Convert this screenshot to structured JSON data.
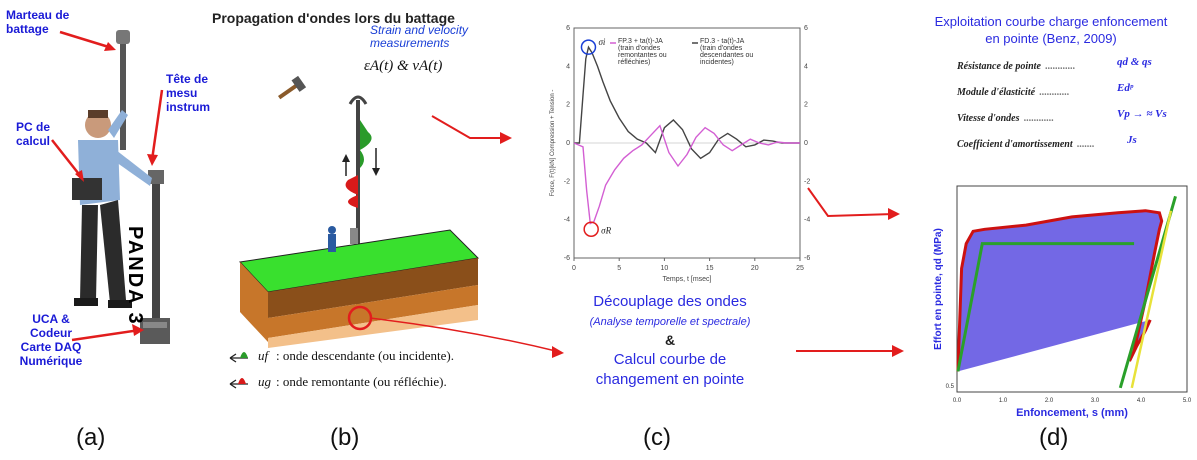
{
  "panel_a": {
    "labels": {
      "marteau": "Marteau de battage",
      "tete": "Tête de mesu instrumenté",
      "pc": "PC de calcul",
      "uca": "UCA & Codeur Carte DAQ Numérique",
      "panda": "PANDA 3"
    },
    "caption": "(a)"
  },
  "panel_b": {
    "title": "Propagation d'ondes lors du battage",
    "strain_label": "Strain and velocity measurements",
    "eps_formula": "εA(t) & vA(t)",
    "legend_down": ": onde descendante (ou incidente).",
    "legend_up": ": onde remontante (ou réfléchie).",
    "legend_down_sym": "uf",
    "legend_up_sym": "ug",
    "caption": "(b)"
  },
  "panel_c": {
    "decouplage_title": "Découplage des ondes",
    "decouplage_sub": "(Analyse temporelle et spectrale)",
    "ampersand": "&",
    "calcul_line1": "Calcul courbe de",
    "calcul_line2": "changement en pointe",
    "caption": "(c)"
  },
  "panel_d": {
    "title_line1": "Exploitation courbe charge enfoncement",
    "title_line2": "en pointe (Benz, 2009)",
    "params": [
      {
        "name": "Résistance de pointe",
        "value": "qd & qs"
      },
      {
        "name": "Module d'élasticité",
        "value": "Edᵖ"
      },
      {
        "name": "Vitesse d'ondes",
        "value": "Vp → ≈ Vs"
      },
      {
        "name": "Coefficient d'amortissement",
        "value": "Js"
      }
    ],
    "caption": "(d)"
  },
  "chart_data": [
    {
      "type": "line",
      "xlabel": "Temps, t [msec]",
      "ylabel": "Force, F(t)[kN] Compression + Tension -",
      "xlim": [
        0,
        25
      ],
      "ylim": [
        -6,
        6
      ],
      "y2lim": [
        -6,
        6
      ],
      "x_ticks": [
        0,
        5,
        10,
        15,
        20,
        25
      ],
      "y_ticks": [
        6,
        4,
        2,
        0,
        -2,
        -4,
        -6
      ],
      "legend": [
        {
          "name": "FP.3 + ta(t)-JA",
          "note": "(train d'ondes remontantes ou réfléchies)",
          "color": "#d35fd3"
        },
        {
          "name": "FD.3 - ta(t)-JA",
          "note": "(train d'ondes descendantes ou incidentes)",
          "color": "#444444"
        }
      ],
      "annotations": [
        {
          "text": "σi",
          "x": 1.6,
          "y": 5.0
        },
        {
          "text": "σR",
          "x": 1.9,
          "y": -4.5
        }
      ],
      "series": [
        {
          "name": "FD.3 - ta(t)-JA",
          "color": "#444444",
          "x": [
            0,
            0.6,
            1.0,
            1.3,
            1.6,
            2.0,
            2.6,
            3.2,
            4.0,
            5.0,
            6.0,
            7.0,
            8.0,
            9.0,
            10.0,
            11.0,
            12.0,
            13.0,
            14.0,
            15.0,
            16.0,
            17.0,
            18.0,
            19.0,
            20.0,
            21.0,
            22.0,
            23.0,
            24.0,
            25.0
          ],
          "y": [
            0,
            0,
            2.5,
            4.4,
            5.0,
            4.7,
            4.0,
            3.2,
            2.2,
            1.3,
            0.6,
            0.2,
            0.0,
            -0.5,
            0.8,
            1.2,
            0.7,
            -0.3,
            -0.8,
            -0.5,
            0.2,
            0.5,
            0.2,
            -0.2,
            -0.1,
            0.15,
            0.1,
            0.0,
            0.0,
            0.0
          ]
        },
        {
          "name": "FP.3 + ta(t)-JA",
          "color": "#d35fd3",
          "x": [
            0,
            1.0,
            1.4,
            1.8,
            2.2,
            2.8,
            3.5,
            4.5,
            5.5,
            6.5,
            7.5,
            8.5,
            9.5,
            10.5,
            11.5,
            12.5,
            13.5,
            14.5,
            15.5,
            16.5,
            17.5,
            18.5,
            19.5,
            20.5,
            21.5,
            22.5,
            23.5,
            25.0
          ],
          "y": [
            0,
            -0.2,
            -2.5,
            -4.2,
            -4.1,
            -3.3,
            -2.2,
            -1.4,
            -0.8,
            -0.4,
            -0.1,
            0.4,
            0.9,
            -0.5,
            -1.2,
            -0.6,
            0.3,
            0.8,
            0.5,
            -0.1,
            -0.4,
            -0.1,
            0.2,
            0.0,
            -0.1,
            0.05,
            0.0,
            0.0
          ]
        }
      ]
    },
    {
      "type": "area",
      "xlabel": "Enfoncement, s (mm)",
      "ylabel": "Effort en pointe, qd (MPa)",
      "xlim": [
        0,
        5
      ],
      "x_ticks": [
        "0.0",
        "1.0",
        "2.0",
        "3.0",
        "4.0",
        "5.0"
      ],
      "y_ticks": [
        "0.5"
      ],
      "series": [
        {
          "name": "loading-unloading loop",
          "color": "#cc1111",
          "x": [
            0.02,
            0.1,
            0.2,
            0.35,
            0.6,
            1.5,
            2.5,
            3.5,
            4.1,
            4.4,
            4.45,
            4.4,
            4.3,
            4.1,
            3.85,
            3.75,
            3.9,
            4.1,
            4.2
          ],
          "y": [
            0.9,
            0.4,
            0.28,
            0.22,
            0.21,
            0.19,
            0.15,
            0.13,
            0.12,
            0.13,
            0.17,
            0.21,
            0.32,
            0.55,
            0.8,
            0.85,
            0.78,
            0.7,
            0.65
          ]
        }
      ]
    }
  ]
}
